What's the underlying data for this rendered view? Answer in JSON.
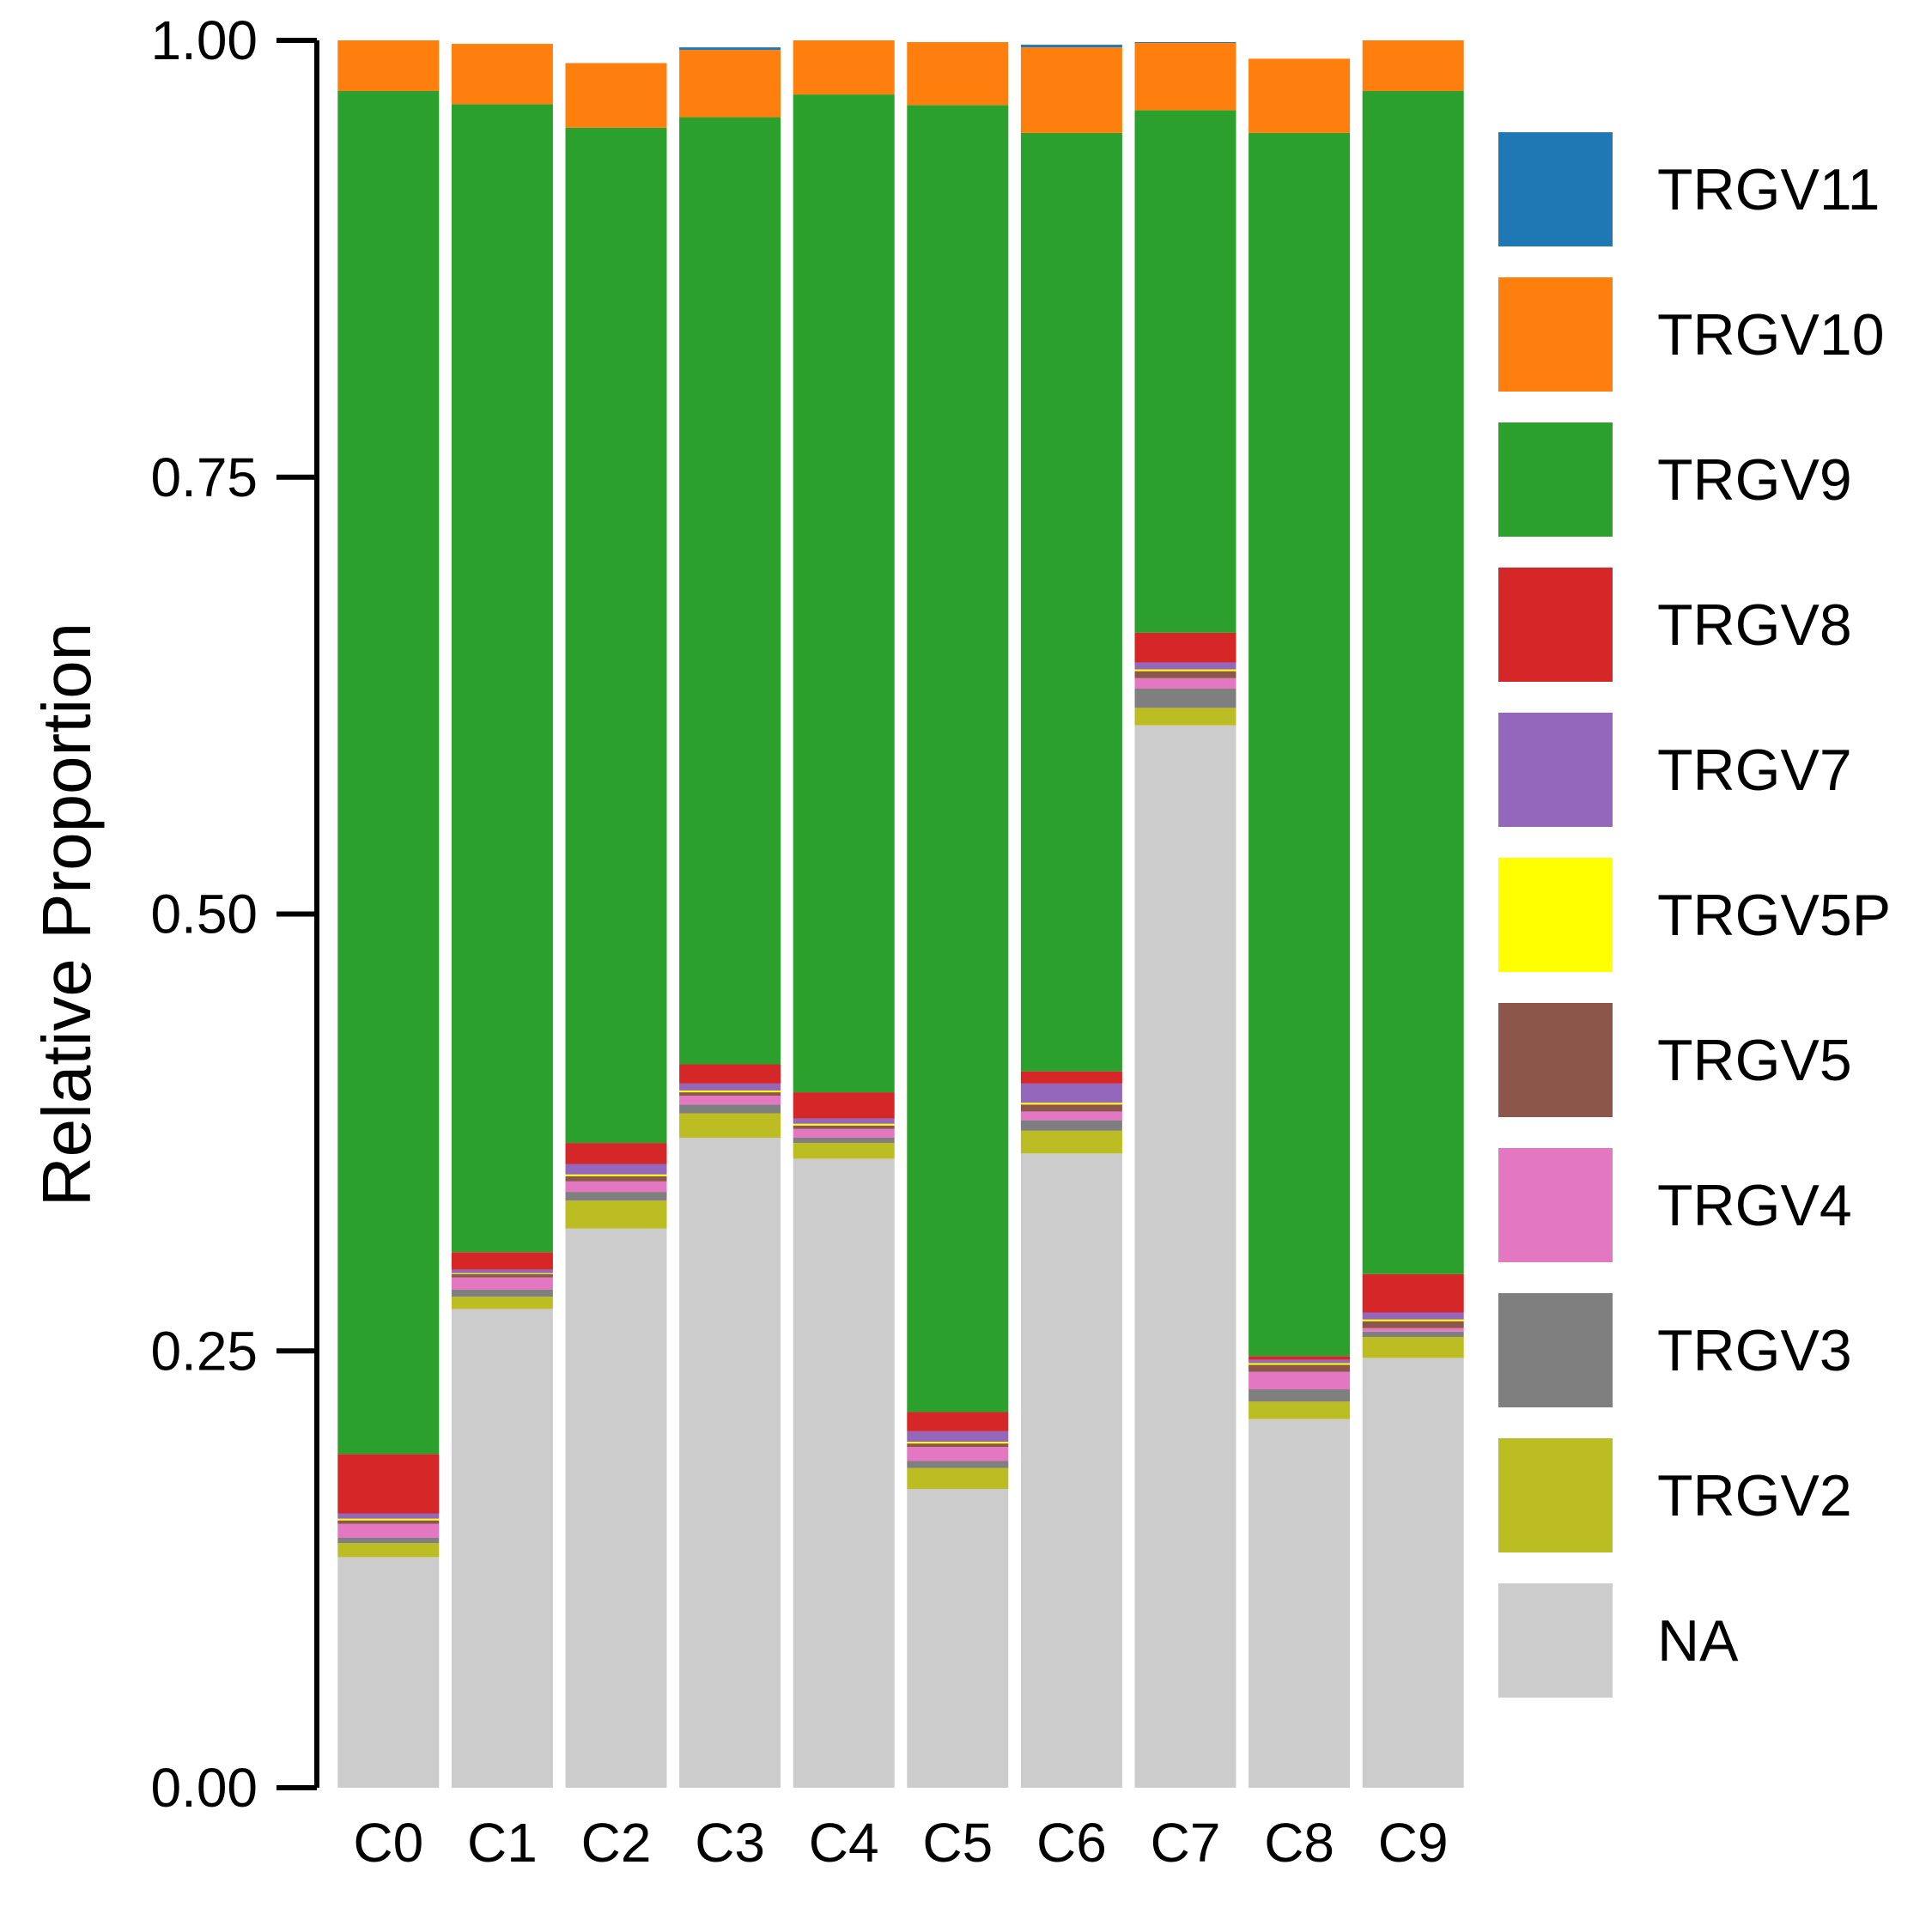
{
  "chart_data": {
    "type": "bar",
    "stacked": true,
    "title": "",
    "xlabel": "",
    "ylabel": "Relative Proportion",
    "ylim": [
      0,
      1
    ],
    "yticks": [
      "0.00",
      "0.25",
      "0.50",
      "0.75",
      "1.00"
    ],
    "ytick_values": [
      0,
      0.25,
      0.5,
      0.75,
      1
    ],
    "grid": false,
    "legend_position": "right",
    "categories": [
      "C0",
      "C1",
      "C2",
      "C3",
      "C4",
      "C5",
      "C6",
      "C7",
      "C8",
      "C9"
    ],
    "series": [
      {
        "name": "NA",
        "color": "#CCCCCC",
        "values": [
          0.132,
          0.274,
          0.32,
          0.372,
          0.36,
          0.171,
          0.363,
          0.608,
          0.211,
          0.246
        ]
      },
      {
        "name": "TRGV2",
        "color": "#BCBD22",
        "values": [
          0.008,
          0.007,
          0.016,
          0.014,
          0.009,
          0.012,
          0.013,
          0.01,
          0.01,
          0.012
        ]
      },
      {
        "name": "TRGV3",
        "color": "#7F7F7F",
        "values": [
          0.003,
          0.004,
          0.005,
          0.005,
          0.003,
          0.004,
          0.006,
          0.011,
          0.007,
          0.003
        ]
      },
      {
        "name": "TRGV4",
        "color": "#E377C2",
        "values": [
          0.008,
          0.007,
          0.006,
          0.005,
          0.005,
          0.008,
          0.005,
          0.006,
          0.01,
          0.002
        ]
      },
      {
        "name": "TRGV5",
        "color": "#8C564B",
        "values": [
          0.002,
          0.002,
          0.003,
          0.002,
          0.002,
          0.002,
          0.004,
          0.004,
          0.004,
          0.004
        ]
      },
      {
        "name": "TRGV5P",
        "color": "#FFFF00",
        "values": [
          0.001,
          0.0005,
          0.001,
          0.001,
          0.001,
          0.001,
          0.001,
          0.001,
          0.001,
          0.001
        ]
      },
      {
        "name": "TRGV7",
        "color": "#9467BD",
        "values": [
          0.003,
          0.002,
          0.006,
          0.004,
          0.003,
          0.006,
          0.011,
          0.004,
          0.002,
          0.004
        ]
      },
      {
        "name": "TRGV8",
        "color": "#D62728",
        "values": [
          0.034,
          0.01,
          0.012,
          0.011,
          0.015,
          0.011,
          0.007,
          0.017,
          0.002,
          0.022
        ]
      },
      {
        "name": "TRGV9",
        "color": "#2CA02C",
        "values": [
          0.78,
          0.657,
          0.581,
          0.542,
          0.571,
          0.748,
          0.537,
          0.299,
          0.7,
          0.677
        ]
      },
      {
        "name": "TRGV10",
        "color": "#FF7F0E",
        "values": [
          0.029,
          0.0345,
          0.037,
          0.0385,
          0.031,
          0.036,
          0.049,
          0.0385,
          0.0425,
          0.029
        ]
      },
      {
        "name": "TRGV11",
        "color": "#1F77B4",
        "values": [
          0,
          0,
          0,
          0.0015,
          0,
          0,
          0.0015,
          0.0005,
          0,
          0
        ]
      }
    ],
    "legend_order": [
      "TRGV11",
      "TRGV10",
      "TRGV9",
      "TRGV8",
      "TRGV7",
      "TRGV5P",
      "TRGV5",
      "TRGV4",
      "TRGV3",
      "TRGV2",
      "NA"
    ]
  }
}
